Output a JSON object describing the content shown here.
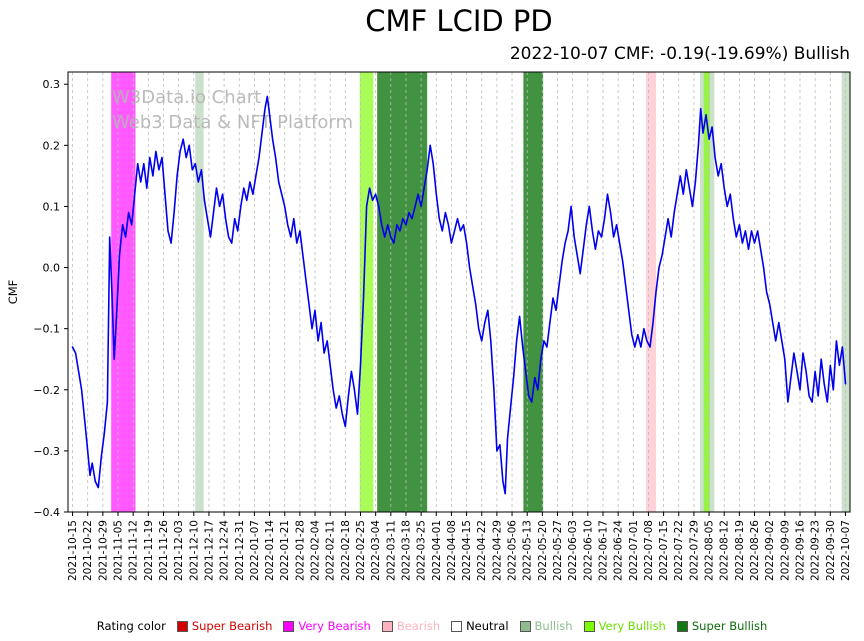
{
  "title": "CMF LCID PD",
  "subtitle": "2022-10-07 CMF: -0.19(-19.69%) Bullish",
  "watermark": {
    "line1": "W3Data.io Chart",
    "line2": "Web3 Data & NFT Platform",
    "color": "#b4b4b4"
  },
  "legend": {
    "label": "Rating color",
    "order": [
      "super_bearish",
      "very_bearish",
      "bearish",
      "neutral",
      "bullish",
      "very_bullish",
      "super_bullish"
    ]
  },
  "ratings": {
    "super_bearish": {
      "label": "Super Bearish",
      "color": "#d40000",
      "text_color": "#d40000",
      "band_alpha": 0.6
    },
    "very_bearish": {
      "label": "Very Bearish",
      "color": "#ff00ff",
      "text_color": "#ff00ff",
      "band_alpha": 0.65
    },
    "bearish": {
      "label": "Bearish",
      "color": "#ffb3c0",
      "text_color": "#ffb3c0",
      "band_alpha": 0.6
    },
    "neutral": {
      "label": "Neutral",
      "color": "#ffffff",
      "text_color": "#000000",
      "band_alpha": 0
    },
    "bullish": {
      "label": "Bullish",
      "color": "#8fbc8f",
      "text_color": "#8fbc8f",
      "band_alpha": 0.45
    },
    "very_bullish": {
      "label": "Very Bullish",
      "color": "#7cfc00",
      "text_color": "#6adf00",
      "band_alpha": 0.65
    },
    "super_bullish": {
      "label": "Super Bullish",
      "color": "#127812",
      "text_color": "#0c6b0c",
      "band_alpha": 0.8
    }
  },
  "chart_data": {
    "type": "line",
    "title": "CMF LCID PD",
    "ylabel": "CMF",
    "xlabel": "",
    "ylim": [
      -0.4,
      0.32
    ],
    "xlim_weeks": [
      -0.3,
      51.3
    ],
    "grid": "vertical-dashed",
    "legend_position": "bottom",
    "line_color": "#0000ee",
    "y_ticks": [
      0.3,
      0.2,
      0.1,
      0.0,
      -0.1,
      -0.2,
      -0.3,
      -0.4
    ],
    "x_unit": "weeks since 2021-10-15 (fractional index into x_tick_labels)",
    "x_tick_labels": [
      "2021-10-15",
      "2021-10-22",
      "2021-10-29",
      "2021-11-05",
      "2021-11-12",
      "2021-11-19",
      "2021-11-26",
      "2021-12-03",
      "2021-12-10",
      "2021-12-17",
      "2021-12-24",
      "2021-12-31",
      "2022-01-07",
      "2022-01-14",
      "2022-01-21",
      "2022-01-28",
      "2022-02-04",
      "2022-02-11",
      "2022-02-18",
      "2022-02-25",
      "2022-03-04",
      "2022-03-11",
      "2022-03-18",
      "2022-03-25",
      "2022-04-01",
      "2022-04-08",
      "2022-04-15",
      "2022-04-22",
      "2022-04-29",
      "2022-05-06",
      "2022-05-13",
      "2022-05-20",
      "2022-05-27",
      "2022-06-03",
      "2022-06-10",
      "2022-06-17",
      "2022-06-24",
      "2022-07-01",
      "2022-07-08",
      "2022-07-15",
      "2022-07-22",
      "2022-07-29",
      "2022-08-05",
      "2022-08-12",
      "2022-08-19",
      "2022-08-26",
      "2022-09-02",
      "2022-09-09",
      "2022-09-16",
      "2022-09-23",
      "2022-09-30",
      "2022-10-07"
    ],
    "rating_bands": [
      {
        "rating": "very_bearish",
        "from": 2.55,
        "to": 4.15
      },
      {
        "rating": "bullish",
        "from": 8.1,
        "to": 8.65
      },
      {
        "rating": "very_bullish",
        "from": 18.95,
        "to": 19.85
      },
      {
        "rating": "super_bullish",
        "from": 20.1,
        "to": 23.4
      },
      {
        "rating": "super_bullish",
        "from": 29.75,
        "to": 31.05
      },
      {
        "rating": "bearish",
        "from": 37.85,
        "to": 38.5
      },
      {
        "rating": "bullish",
        "from": 41.4,
        "to": 42.35
      },
      {
        "rating": "very_bullish",
        "from": 41.65,
        "to": 42.05
      },
      {
        "rating": "bullish",
        "from": 50.75,
        "to": 51.3
      }
    ],
    "series": [
      {
        "name": "CMF",
        "points": [
          [
            0,
            -0.13
          ],
          [
            0.2,
            -0.14
          ],
          [
            0.4,
            -0.17
          ],
          [
            0.6,
            -0.2
          ],
          [
            0.8,
            -0.25
          ],
          [
            1.0,
            -0.3
          ],
          [
            1.15,
            -0.34
          ],
          [
            1.3,
            -0.32
          ],
          [
            1.5,
            -0.35
          ],
          [
            1.7,
            -0.36
          ],
          [
            1.9,
            -0.31
          ],
          [
            2.1,
            -0.27
          ],
          [
            2.3,
            -0.22
          ],
          [
            2.45,
            0.05
          ],
          [
            2.6,
            -0.04
          ],
          [
            2.75,
            -0.15
          ],
          [
            2.9,
            -0.08
          ],
          [
            3.1,
            0.02
          ],
          [
            3.3,
            0.07
          ],
          [
            3.5,
            0.05
          ],
          [
            3.7,
            0.09
          ],
          [
            3.9,
            0.07
          ],
          [
            4.1,
            0.12
          ],
          [
            4.3,
            0.17
          ],
          [
            4.5,
            0.14
          ],
          [
            4.7,
            0.17
          ],
          [
            4.9,
            0.13
          ],
          [
            5.1,
            0.18
          ],
          [
            5.3,
            0.15
          ],
          [
            5.5,
            0.19
          ],
          [
            5.7,
            0.16
          ],
          [
            5.9,
            0.18
          ],
          [
            6.1,
            0.12
          ],
          [
            6.3,
            0.06
          ],
          [
            6.5,
            0.04
          ],
          [
            6.7,
            0.09
          ],
          [
            6.9,
            0.15
          ],
          [
            7.1,
            0.19
          ],
          [
            7.3,
            0.21
          ],
          [
            7.5,
            0.18
          ],
          [
            7.7,
            0.2
          ],
          [
            7.9,
            0.16
          ],
          [
            8.1,
            0.17
          ],
          [
            8.3,
            0.14
          ],
          [
            8.5,
            0.16
          ],
          [
            8.7,
            0.11
          ],
          [
            8.9,
            0.08
          ],
          [
            9.1,
            0.05
          ],
          [
            9.3,
            0.09
          ],
          [
            9.5,
            0.13
          ],
          [
            9.7,
            0.1
          ],
          [
            9.9,
            0.12
          ],
          [
            10.1,
            0.08
          ],
          [
            10.3,
            0.05
          ],
          [
            10.5,
            0.04
          ],
          [
            10.7,
            0.08
          ],
          [
            10.9,
            0.06
          ],
          [
            11.1,
            0.1
          ],
          [
            11.3,
            0.13
          ],
          [
            11.5,
            0.11
          ],
          [
            11.7,
            0.14
          ],
          [
            11.9,
            0.12
          ],
          [
            12.1,
            0.15
          ],
          [
            12.3,
            0.18
          ],
          [
            12.5,
            0.22
          ],
          [
            12.7,
            0.26
          ],
          [
            12.85,
            0.28
          ],
          [
            13.0,
            0.25
          ],
          [
            13.2,
            0.21
          ],
          [
            13.4,
            0.18
          ],
          [
            13.6,
            0.14
          ],
          [
            13.8,
            0.12
          ],
          [
            14.0,
            0.1
          ],
          [
            14.2,
            0.07
          ],
          [
            14.4,
            0.05
          ],
          [
            14.6,
            0.08
          ],
          [
            14.8,
            0.04
          ],
          [
            15.0,
            0.06
          ],
          [
            15.2,
            0.02
          ],
          [
            15.4,
            -0.02
          ],
          [
            15.6,
            -0.06
          ],
          [
            15.8,
            -0.1
          ],
          [
            16.0,
            -0.07
          ],
          [
            16.2,
            -0.12
          ],
          [
            16.4,
            -0.09
          ],
          [
            16.6,
            -0.14
          ],
          [
            16.8,
            -0.12
          ],
          [
            17.0,
            -0.16
          ],
          [
            17.2,
            -0.2
          ],
          [
            17.4,
            -0.23
          ],
          [
            17.6,
            -0.21
          ],
          [
            17.8,
            -0.24
          ],
          [
            18.0,
            -0.26
          ],
          [
            18.2,
            -0.21
          ],
          [
            18.4,
            -0.17
          ],
          [
            18.6,
            -0.2
          ],
          [
            18.8,
            -0.24
          ],
          [
            19.0,
            -0.16
          ],
          [
            19.2,
            -0.05
          ],
          [
            19.4,
            0.1
          ],
          [
            19.6,
            0.13
          ],
          [
            19.8,
            0.11
          ],
          [
            20.0,
            0.12
          ],
          [
            20.2,
            0.1
          ],
          [
            20.4,
            0.07
          ],
          [
            20.6,
            0.05
          ],
          [
            20.8,
            0.07
          ],
          [
            21.0,
            0.05
          ],
          [
            21.2,
            0.04
          ],
          [
            21.4,
            0.07
          ],
          [
            21.6,
            0.06
          ],
          [
            21.8,
            0.08
          ],
          [
            22.0,
            0.07
          ],
          [
            22.2,
            0.09
          ],
          [
            22.4,
            0.08
          ],
          [
            22.6,
            0.1
          ],
          [
            22.8,
            0.12
          ],
          [
            23.0,
            0.1
          ],
          [
            23.2,
            0.13
          ],
          [
            23.4,
            0.16
          ],
          [
            23.6,
            0.2
          ],
          [
            23.8,
            0.17
          ],
          [
            24.0,
            0.12
          ],
          [
            24.2,
            0.08
          ],
          [
            24.4,
            0.06
          ],
          [
            24.6,
            0.09
          ],
          [
            24.8,
            0.07
          ],
          [
            25.0,
            0.04
          ],
          [
            25.2,
            0.06
          ],
          [
            25.4,
            0.08
          ],
          [
            25.6,
            0.06
          ],
          [
            25.8,
            0.07
          ],
          [
            26.0,
            0.04
          ],
          [
            26.2,
            0
          ],
          [
            26.4,
            -0.03
          ],
          [
            26.6,
            -0.06
          ],
          [
            26.8,
            -0.1
          ],
          [
            27.0,
            -0.12
          ],
          [
            27.2,
            -0.09
          ],
          [
            27.4,
            -0.07
          ],
          [
            27.6,
            -0.12
          ],
          [
            27.8,
            -0.2
          ],
          [
            28.0,
            -0.3
          ],
          [
            28.2,
            -0.29
          ],
          [
            28.4,
            -0.35
          ],
          [
            28.55,
            -0.37
          ],
          [
            28.7,
            -0.28
          ],
          [
            28.9,
            -0.23
          ],
          [
            29.1,
            -0.18
          ],
          [
            29.3,
            -0.12
          ],
          [
            29.5,
            -0.08
          ],
          [
            29.7,
            -0.13
          ],
          [
            29.9,
            -0.17
          ],
          [
            30.1,
            -0.21
          ],
          [
            30.3,
            -0.22
          ],
          [
            30.5,
            -0.18
          ],
          [
            30.7,
            -0.2
          ],
          [
            30.9,
            -0.15
          ],
          [
            31.1,
            -0.12
          ],
          [
            31.3,
            -0.13
          ],
          [
            31.5,
            -0.09
          ],
          [
            31.7,
            -0.05
          ],
          [
            31.9,
            -0.07
          ],
          [
            32.1,
            -0.03
          ],
          [
            32.3,
            0.01
          ],
          [
            32.5,
            0.04
          ],
          [
            32.7,
            0.06
          ],
          [
            32.9,
            0.1
          ],
          [
            33.1,
            0.05
          ],
          [
            33.3,
            0.02
          ],
          [
            33.5,
            -0.01
          ],
          [
            33.7,
            0.03
          ],
          [
            33.9,
            0.07
          ],
          [
            34.1,
            0.1
          ],
          [
            34.3,
            0.06
          ],
          [
            34.5,
            0.03
          ],
          [
            34.7,
            0.06
          ],
          [
            34.9,
            0.05
          ],
          [
            35.1,
            0.08
          ],
          [
            35.3,
            0.12
          ],
          [
            35.5,
            0.09
          ],
          [
            35.7,
            0.05
          ],
          [
            35.9,
            0.07
          ],
          [
            36.1,
            0.04
          ],
          [
            36.3,
            0.01
          ],
          [
            36.5,
            -0.03
          ],
          [
            36.7,
            -0.07
          ],
          [
            36.9,
            -0.11
          ],
          [
            37.1,
            -0.13
          ],
          [
            37.3,
            -0.11
          ],
          [
            37.5,
            -0.13
          ],
          [
            37.7,
            -0.1
          ],
          [
            37.9,
            -0.12
          ],
          [
            38.1,
            -0.13
          ],
          [
            38.3,
            -0.09
          ],
          [
            38.5,
            -0.04
          ],
          [
            38.7,
            0
          ],
          [
            38.9,
            0.02
          ],
          [
            39.1,
            0.05
          ],
          [
            39.3,
            0.08
          ],
          [
            39.5,
            0.05
          ],
          [
            39.7,
            0.09
          ],
          [
            39.9,
            0.12
          ],
          [
            40.1,
            0.15
          ],
          [
            40.3,
            0.12
          ],
          [
            40.5,
            0.16
          ],
          [
            40.7,
            0.13
          ],
          [
            40.9,
            0.1
          ],
          [
            41.1,
            0.14
          ],
          [
            41.3,
            0.2
          ],
          [
            41.45,
            0.26
          ],
          [
            41.6,
            0.22
          ],
          [
            41.8,
            0.25
          ],
          [
            42.0,
            0.21
          ],
          [
            42.2,
            0.23
          ],
          [
            42.4,
            0.18
          ],
          [
            42.6,
            0.15
          ],
          [
            42.8,
            0.17
          ],
          [
            43.0,
            0.13
          ],
          [
            43.2,
            0.1
          ],
          [
            43.4,
            0.12
          ],
          [
            43.6,
            0.08
          ],
          [
            43.8,
            0.05
          ],
          [
            44.0,
            0.07
          ],
          [
            44.2,
            0.04
          ],
          [
            44.4,
            0.06
          ],
          [
            44.6,
            0.03
          ],
          [
            44.8,
            0.06
          ],
          [
            45.0,
            0.04
          ],
          [
            45.2,
            0.06
          ],
          [
            45.4,
            0.03
          ],
          [
            45.6,
            0
          ],
          [
            45.8,
            -0.04
          ],
          [
            46.0,
            -0.06
          ],
          [
            46.2,
            -0.09
          ],
          [
            46.4,
            -0.12
          ],
          [
            46.6,
            -0.09
          ],
          [
            46.8,
            -0.12
          ],
          [
            47.0,
            -0.15
          ],
          [
            47.2,
            -0.22
          ],
          [
            47.4,
            -0.18
          ],
          [
            47.6,
            -0.14
          ],
          [
            47.8,
            -0.17
          ],
          [
            48.0,
            -0.2
          ],
          [
            48.2,
            -0.14
          ],
          [
            48.4,
            -0.17
          ],
          [
            48.6,
            -0.21
          ],
          [
            48.8,
            -0.22
          ],
          [
            49.0,
            -0.17
          ],
          [
            49.2,
            -0.21
          ],
          [
            49.4,
            -0.15
          ],
          [
            49.6,
            -0.19
          ],
          [
            49.8,
            -0.22
          ],
          [
            50.0,
            -0.16
          ],
          [
            50.2,
            -0.2
          ],
          [
            50.4,
            -0.12
          ],
          [
            50.6,
            -0.16
          ],
          [
            50.8,
            -0.13
          ],
          [
            51.0,
            -0.19
          ]
        ]
      }
    ]
  }
}
